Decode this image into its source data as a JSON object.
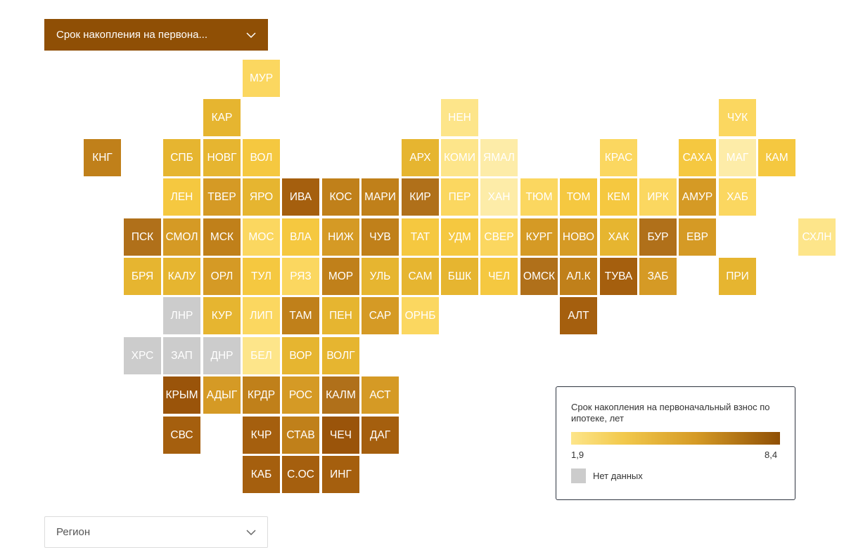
{
  "indicator_select": {
    "label": "Срок накопления на первона..."
  },
  "region_select": {
    "label": "Регион"
  },
  "legend": {
    "title": "Срок накопления на первоначальный взнос по ипотеке, лет",
    "min_label": "1,9",
    "max_label": "8,4",
    "no_data_label": "Нет данных",
    "no_data_color": "#cccccc",
    "scale_colors": [
      "#fde58a",
      "#f2c94c",
      "#d59a25",
      "#8f4f05"
    ]
  },
  "regions": [
    {
      "code": "МУР",
      "color": "#fbd760"
    },
    {
      "code": "КАР",
      "color": "#e6b530"
    },
    {
      "code": "НЕН",
      "color": "#fde58a"
    },
    {
      "code": "ЧУК",
      "color": "#fbd760"
    },
    {
      "code": "КНГ",
      "color": "#c0801a"
    },
    {
      "code": "СПБ",
      "color": "#e6b530"
    },
    {
      "code": "НОВГ",
      "color": "#e6b530"
    },
    {
      "code": "ВОЛ",
      "color": "#f5c840"
    },
    {
      "code": "АРХ",
      "color": "#e6b530"
    },
    {
      "code": "КОМИ",
      "color": "#fde58a"
    },
    {
      "code": "ЯМАЛ",
      "color": "#fdeca8"
    },
    {
      "code": "КРАС",
      "color": "#fbd760"
    },
    {
      "code": "САХА",
      "color": "#f5c840"
    },
    {
      "code": "МАГ",
      "color": "#fdeca8"
    },
    {
      "code": "КАМ",
      "color": "#f5c840"
    },
    {
      "code": "ЛЕН",
      "color": "#f5c840"
    },
    {
      "code": "ТВЕР",
      "color": "#d59a25"
    },
    {
      "code": "ЯРО",
      "color": "#e6b530"
    },
    {
      "code": "ИВА",
      "color": "#a55f0e"
    },
    {
      "code": "КОС",
      "color": "#c0801a"
    },
    {
      "code": "МАРИ",
      "color": "#c0801a"
    },
    {
      "code": "КИР",
      "color": "#b0701a"
    },
    {
      "code": "ПЕР",
      "color": "#fbd760"
    },
    {
      "code": "ХАН",
      "color": "#fdeca8"
    },
    {
      "code": "ТЮМ",
      "color": "#fbd760"
    },
    {
      "code": "ТОМ",
      "color": "#f5c840"
    },
    {
      "code": "КЕМ",
      "color": "#f5c840"
    },
    {
      "code": "ИРК",
      "color": "#fbd760"
    },
    {
      "code": "АМУР",
      "color": "#d59a25"
    },
    {
      "code": "ХАБ",
      "color": "#fbd760"
    },
    {
      "code": "ПСК",
      "color": "#b0701a"
    },
    {
      "code": "СМОЛ",
      "color": "#d59a25"
    },
    {
      "code": "МСК",
      "color": "#c0801a"
    },
    {
      "code": "МОС",
      "color": "#fbd760"
    },
    {
      "code": "ВЛА",
      "color": "#f5c840"
    },
    {
      "code": "НИЖ",
      "color": "#d59a25"
    },
    {
      "code": "ЧУВ",
      "color": "#c0801a"
    },
    {
      "code": "ТАТ",
      "color": "#f5c840"
    },
    {
      "code": "УДМ",
      "color": "#f5c840"
    },
    {
      "code": "СВЕР",
      "color": "#fbd760"
    },
    {
      "code": "КУРГ",
      "color": "#d59a25"
    },
    {
      "code": "НОВО",
      "color": "#d59a25"
    },
    {
      "code": "ХАК",
      "color": "#e6b530"
    },
    {
      "code": "БУР",
      "color": "#b0701a"
    },
    {
      "code": "ЕВР",
      "color": "#d59a25"
    },
    {
      "code": "СХЛН",
      "color": "#fde58a"
    },
    {
      "code": "БРЯ",
      "color": "#e6b530"
    },
    {
      "code": "КАЛУ",
      "color": "#e6b530"
    },
    {
      "code": "ОРЛ",
      "color": "#d59a25"
    },
    {
      "code": "ТУЛ",
      "color": "#f5c840"
    },
    {
      "code": "РЯЗ",
      "color": "#fbd760"
    },
    {
      "code": "МОР",
      "color": "#c0801a"
    },
    {
      "code": "УЛЬ",
      "color": "#e6b530"
    },
    {
      "code": "САМ",
      "color": "#e6b530"
    },
    {
      "code": "БШК",
      "color": "#e6b530"
    },
    {
      "code": "ЧЕЛ",
      "color": "#f5c840"
    },
    {
      "code": "ОМСК",
      "color": "#b0701a"
    },
    {
      "code": "АЛ.К",
      "color": "#c0801a"
    },
    {
      "code": "ТУВА",
      "color": "#a55f0e"
    },
    {
      "code": "ЗАБ",
      "color": "#d59a25"
    },
    {
      "code": "ПРИ",
      "color": "#e6b530"
    },
    {
      "code": "ЛНР",
      "color": "#cccccc"
    },
    {
      "code": "КУР",
      "color": "#e6b530"
    },
    {
      "code": "ЛИП",
      "color": "#fbd760"
    },
    {
      "code": "ТАМ",
      "color": "#c0801a"
    },
    {
      "code": "ПЕН",
      "color": "#e6b530"
    },
    {
      "code": "САР",
      "color": "#d59a25"
    },
    {
      "code": "ОРНБ",
      "color": "#fbd760"
    },
    {
      "code": "АЛТ",
      "color": "#a55f0e"
    },
    {
      "code": "ХРС",
      "color": "#cccccc"
    },
    {
      "code": "ЗАП",
      "color": "#cccccc"
    },
    {
      "code": "ДНР",
      "color": "#cccccc"
    },
    {
      "code": "БЕЛ",
      "color": "#fde58a"
    },
    {
      "code": "ВОР",
      "color": "#e6b530"
    },
    {
      "code": "ВОЛГ",
      "color": "#e6b530"
    },
    {
      "code": "КРЫМ",
      "color": "#9a540a"
    },
    {
      "code": "АДЫГ",
      "color": "#d59a25"
    },
    {
      "code": "КРДР",
      "color": "#c0801a"
    },
    {
      "code": "РОС",
      "color": "#d59a25"
    },
    {
      "code": "КАЛМ",
      "color": "#b0701a"
    },
    {
      "code": "АСТ",
      "color": "#d59a25"
    },
    {
      "code": "СВС",
      "color": "#a55f0e"
    },
    {
      "code": "КЧР",
      "color": "#a55f0e"
    },
    {
      "code": "СТАВ",
      "color": "#c0801a"
    },
    {
      "code": "ЧЕЧ",
      "color": "#9a540a"
    },
    {
      "code": "ДАГ",
      "color": "#a55f0e"
    },
    {
      "code": "КАБ",
      "color": "#a55f0e"
    },
    {
      "code": "С.ОС",
      "color": "#a55f0e"
    },
    {
      "code": "ИНГ",
      "color": "#a55f0e"
    }
  ]
}
